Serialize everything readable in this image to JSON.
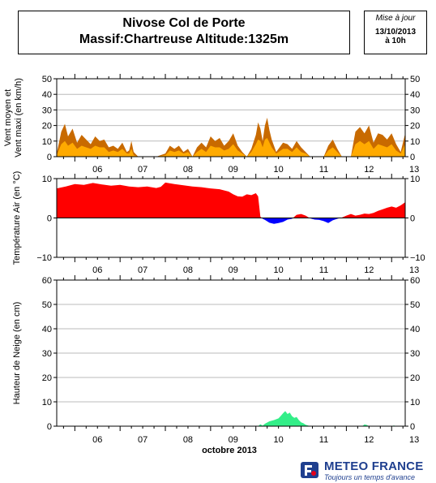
{
  "header": {
    "title_line1": "Nivose Col de Porte",
    "title_line2": "Massif:Chartreuse Altitude:1325m",
    "update_label": "Mise à jour",
    "update_date": "13/10/2013",
    "update_time": "à 10h"
  },
  "logo": {
    "name": "METEO FRANCE",
    "tagline": "Toujours un temps d'avance"
  },
  "colors": {
    "wind_max": "#c86a00",
    "wind_mean": "#ffaa00",
    "temp_pos": "#ff0000",
    "temp_neg": "#0000ff",
    "snow": "#33ee88",
    "grid": "#bbbbbb"
  },
  "chart_data": [
    {
      "type": "area",
      "ylabel_line1": "Vent moyen et",
      "ylabel_line2": "Vent maxi (en km/h)",
      "ylim": [
        0,
        50
      ],
      "yticks": [
        "0",
        "10",
        "20",
        "30",
        "40",
        "50"
      ],
      "xticks": [
        "06",
        "07",
        "08",
        "09",
        "10",
        "11",
        "12",
        "13"
      ],
      "xlim": [
        5.6,
        13.3
      ],
      "grid": true,
      "series": [
        {
          "key": "wind_max",
          "x": [
            5.6,
            5.7,
            5.78,
            5.85,
            5.95,
            6.05,
            6.15,
            6.25,
            6.35,
            6.45,
            6.55,
            6.65,
            6.75,
            6.85,
            6.95,
            7.05,
            7.15,
            7.2,
            7.25,
            7.3,
            7.4,
            7.6,
            7.8,
            8.0,
            8.1,
            8.2,
            8.3,
            8.4,
            8.5,
            8.6,
            8.7,
            8.8,
            8.9,
            9.0,
            9.1,
            9.2,
            9.3,
            9.4,
            9.5,
            9.6,
            9.7,
            9.8,
            9.9,
            10.0,
            10.05,
            10.1,
            10.15,
            10.2,
            10.25,
            10.3,
            10.35,
            10.4,
            10.45,
            10.5,
            10.6,
            10.7,
            10.8,
            10.9,
            11.0,
            11.1,
            11.2,
            11.3,
            11.4,
            11.5,
            11.6,
            11.7,
            11.8,
            11.9,
            12.0,
            12.1,
            12.2,
            12.3,
            12.4,
            12.5,
            12.6,
            12.7,
            12.8,
            12.9,
            13.0,
            13.1,
            13.2,
            13.3
          ],
          "values": [
            2,
            16,
            21,
            13,
            18,
            9,
            14,
            11,
            8,
            13,
            10,
            11,
            6,
            7,
            5,
            9,
            3,
            4,
            10,
            3,
            0,
            0,
            0,
            2,
            7,
            5,
            7,
            3,
            5,
            0,
            6,
            9,
            6,
            13,
            10,
            12,
            7,
            10,
            15,
            7,
            3,
            0,
            5,
            14,
            22,
            18,
            10,
            20,
            25,
            17,
            11,
            7,
            3,
            5,
            9,
            8,
            5,
            10,
            6,
            3,
            0,
            0,
            0,
            0,
            7,
            11,
            5,
            0,
            0,
            0,
            16,
            19,
            15,
            20,
            9,
            15,
            14,
            11,
            15,
            8,
            3,
            15
          ]
        },
        {
          "key": "wind_mean",
          "x": [
            5.6,
            5.7,
            5.78,
            5.85,
            5.95,
            6.05,
            6.15,
            6.25,
            6.35,
            6.45,
            6.55,
            6.65,
            6.75,
            6.85,
            6.95,
            7.05,
            7.15,
            7.2,
            7.25,
            7.3,
            7.4,
            7.6,
            7.8,
            8.0,
            8.1,
            8.2,
            8.3,
            8.4,
            8.5,
            8.6,
            8.7,
            8.8,
            8.9,
            9.0,
            9.1,
            9.2,
            9.3,
            9.4,
            9.5,
            9.6,
            9.7,
            9.8,
            9.9,
            10.0,
            10.05,
            10.1,
            10.15,
            10.2,
            10.25,
            10.3,
            10.35,
            10.4,
            10.45,
            10.5,
            10.6,
            10.7,
            10.8,
            10.9,
            11.0,
            11.1,
            11.2,
            11.3,
            11.4,
            11.5,
            11.6,
            11.7,
            11.8,
            11.9,
            12.0,
            12.1,
            12.2,
            12.3,
            12.4,
            12.5,
            12.6,
            12.7,
            12.8,
            12.9,
            13.0,
            13.1,
            13.2,
            13.3
          ],
          "values": [
            1,
            8,
            10,
            7,
            9,
            5,
            7,
            6,
            5,
            7,
            6,
            6,
            3,
            4,
            3,
            5,
            2,
            2,
            5,
            1,
            0,
            0,
            0,
            1,
            4,
            3,
            4,
            2,
            3,
            0,
            3,
            5,
            3,
            7,
            6,
            6,
            4,
            5,
            8,
            4,
            2,
            0,
            3,
            8,
            11,
            10,
            6,
            11,
            12,
            9,
            6,
            4,
            2,
            3,
            5,
            5,
            3,
            6,
            3,
            2,
            0,
            0,
            0,
            0,
            4,
            6,
            3,
            0,
            0,
            0,
            8,
            10,
            8,
            10,
            5,
            8,
            7,
            6,
            8,
            4,
            2,
            8
          ]
        }
      ]
    },
    {
      "type": "area",
      "ylabel": "Température Air (en °C)",
      "ylim": [
        -10,
        10
      ],
      "yticks": [
        "−10",
        "0",
        "10"
      ],
      "xticks": [
        "06",
        "07",
        "08",
        "09",
        "10",
        "11",
        "12",
        "13"
      ],
      "xlim": [
        5.6,
        13.3
      ],
      "grid": true,
      "series": [
        {
          "key": "temperature",
          "x": [
            5.6,
            5.8,
            6.0,
            6.2,
            6.4,
            6.6,
            6.8,
            7.0,
            7.2,
            7.4,
            7.6,
            7.8,
            7.9,
            8.0,
            8.2,
            8.4,
            8.6,
            8.8,
            9.0,
            9.2,
            9.4,
            9.5,
            9.6,
            9.7,
            9.8,
            9.9,
            10.0,
            10.05,
            10.1,
            10.15,
            10.2,
            10.3,
            10.4,
            10.5,
            10.6,
            10.7,
            10.8,
            10.9,
            11.0,
            11.1,
            11.2,
            11.3,
            11.4,
            11.5,
            11.6,
            11.7,
            11.8,
            11.9,
            12.0,
            12.1,
            12.2,
            12.3,
            12.4,
            12.5,
            12.6,
            12.7,
            12.8,
            12.9,
            13.0,
            13.1,
            13.2,
            13.3
          ],
          "values": [
            7.5,
            8.0,
            8.6,
            8.4,
            8.9,
            8.5,
            8.2,
            8.4,
            8.0,
            7.8,
            8.0,
            7.6,
            7.9,
            9.0,
            8.6,
            8.3,
            8.0,
            7.8,
            7.5,
            7.3,
            6.7,
            6.0,
            5.5,
            5.4,
            6.0,
            5.8,
            6.3,
            5.5,
            0.3,
            -0.2,
            -0.5,
            -1.2,
            -1.5,
            -1.3,
            -1.0,
            -0.4,
            -0.2,
            0.8,
            1.0,
            0.6,
            -0.1,
            -0.4,
            -0.5,
            -0.8,
            -1.3,
            -0.6,
            -0.2,
            0.1,
            0.6,
            1.0,
            0.6,
            0.8,
            1.1,
            1.0,
            1.3,
            1.8,
            2.2,
            2.6,
            2.9,
            2.6,
            3.2,
            4.0
          ]
        }
      ]
    },
    {
      "type": "area",
      "ylabel": "Hauteur de Neige (en cm)",
      "xlabel": "octobre 2013",
      "ylim": [
        0,
        60
      ],
      "yticks": [
        "0",
        "10",
        "20",
        "30",
        "40",
        "50",
        "60"
      ],
      "xticks": [
        "06",
        "07",
        "08",
        "09",
        "10",
        "11",
        "12",
        "13"
      ],
      "xlim": [
        5.6,
        13.3
      ],
      "grid": true,
      "series": [
        {
          "key": "snow_depth",
          "x": [
            5.6,
            10.05,
            10.1,
            10.15,
            10.2,
            10.3,
            10.4,
            10.5,
            10.55,
            10.6,
            10.65,
            10.7,
            10.75,
            10.8,
            10.85,
            10.9,
            10.95,
            11.0,
            11.05,
            11.1,
            11.15,
            11.2,
            12.35,
            12.4,
            12.45,
            12.5,
            13.0,
            13.05,
            13.1,
            13.3
          ],
          "values": [
            0,
            0,
            0.8,
            0.2,
            1.0,
            2.0,
            2.5,
            3.2,
            4.2,
            5.3,
            6.2,
            5.0,
            5.6,
            4.1,
            3.4,
            3.8,
            2.5,
            1.6,
            1.2,
            0.6,
            0.3,
            0,
            0,
            0.7,
            0.5,
            0,
            0,
            0.3,
            0,
            0
          ]
        }
      ]
    }
  ]
}
